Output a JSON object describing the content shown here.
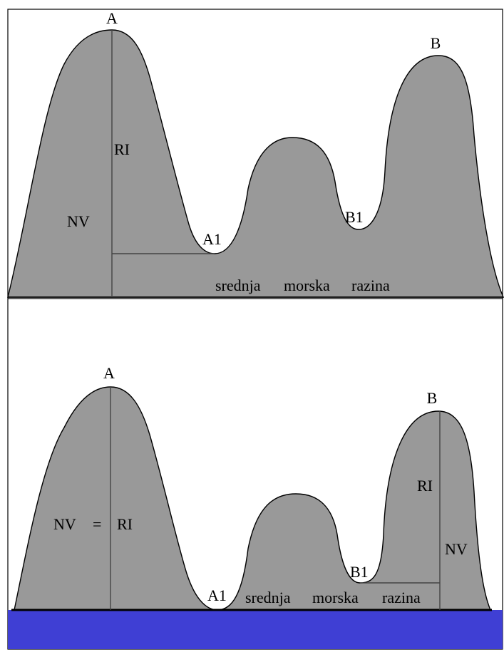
{
  "colors": {
    "terrain": "#999999",
    "sea": "#3f3fd4",
    "outline": "#000000",
    "background": "#ffffff"
  },
  "top_panel": {
    "peak_a": "A",
    "saddle_a1": "A1",
    "peak_b": "B",
    "saddle_b1": "B1",
    "relief_label": "RI",
    "height_label": "NV",
    "sea_level_words": [
      "srednja",
      "morska",
      "razina"
    ]
  },
  "bottom_panel": {
    "peak_a": "A",
    "saddle_a1": "A1",
    "peak_b": "B",
    "saddle_b1": "B1",
    "equality_nv": "NV",
    "equality_sign": "=",
    "equality_ri": "RI",
    "relief_label_b": "RI",
    "height_label_b": "NV",
    "sea_level_words": [
      "srednja",
      "morska",
      "razina"
    ]
  }
}
